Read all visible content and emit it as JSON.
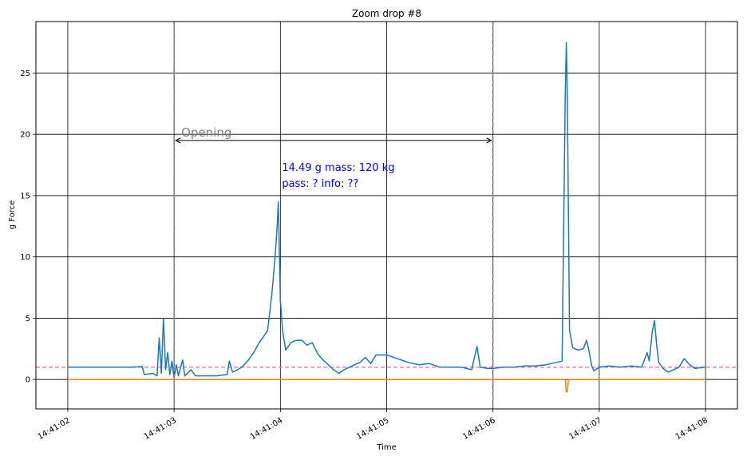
{
  "chart_data": {
    "type": "line",
    "title": "Zoom drop #8",
    "xlabel": "Time",
    "ylabel": "g Force",
    "xlim": [
      -0.3,
      6.3
    ],
    "ylim": [
      -2.4,
      29.2
    ],
    "x_ticks": [
      0,
      1,
      2,
      3,
      4,
      5,
      6
    ],
    "x_tick_labels": [
      "14:41:02",
      "14:41:03",
      "14:41:04",
      "14:41:05",
      "14:41:06",
      "14:41:07",
      "14:41:08"
    ],
    "y_ticks": [
      0,
      5,
      10,
      15,
      20,
      25
    ],
    "y_tick_labels": [
      "0",
      "5",
      "10",
      "15",
      "20",
      "25"
    ],
    "grid": true,
    "colors": {
      "series_1": "#1f77b4",
      "series_2": "#ff7f0e",
      "reference": "#e377c2",
      "markers": "#7f7f7f",
      "annotation": "#0000ff"
    },
    "series": [
      {
        "color": "#1f77b4",
        "points": [
          [
            0.0,
            1.0
          ],
          [
            0.3,
            1.0
          ],
          [
            0.6,
            1.0
          ],
          [
            0.7,
            1.05
          ],
          [
            0.72,
            0.4
          ],
          [
            0.8,
            0.5
          ],
          [
            0.84,
            0.3
          ],
          [
            0.86,
            3.4
          ],
          [
            0.88,
            0.5
          ],
          [
            0.9,
            5.0
          ],
          [
            0.92,
            0.8
          ],
          [
            0.94,
            2.2
          ],
          [
            0.96,
            0.4
          ],
          [
            0.98,
            1.5
          ],
          [
            1.0,
            0.1
          ],
          [
            1.02,
            1.2
          ],
          [
            1.04,
            0.3
          ],
          [
            1.08,
            1.6
          ],
          [
            1.1,
            0.3
          ],
          [
            1.16,
            0.8
          ],
          [
            1.2,
            0.3
          ],
          [
            1.4,
            0.3
          ],
          [
            1.5,
            0.4
          ],
          [
            1.52,
            1.5
          ],
          [
            1.55,
            0.6
          ],
          [
            1.6,
            0.8
          ],
          [
            1.65,
            1.1
          ],
          [
            1.7,
            1.6
          ],
          [
            1.75,
            2.2
          ],
          [
            1.8,
            3.0
          ],
          [
            1.85,
            3.6
          ],
          [
            1.88,
            4.0
          ],
          [
            1.92,
            7.0
          ],
          [
            1.95,
            10.0
          ],
          [
            1.97,
            12.5
          ],
          [
            1.98,
            14.49
          ],
          [
            2.0,
            6.5
          ],
          [
            2.02,
            4.0
          ],
          [
            2.05,
            2.4
          ],
          [
            2.1,
            3.0
          ],
          [
            2.15,
            3.2
          ],
          [
            2.2,
            3.2
          ],
          [
            2.25,
            2.8
          ],
          [
            2.3,
            3.0
          ],
          [
            2.35,
            2.1
          ],
          [
            2.4,
            1.6
          ],
          [
            2.45,
            1.2
          ],
          [
            2.5,
            0.8
          ],
          [
            2.55,
            0.5
          ],
          [
            2.6,
            0.8
          ],
          [
            2.7,
            1.2
          ],
          [
            2.75,
            1.4
          ],
          [
            2.8,
            1.8
          ],
          [
            2.85,
            1.3
          ],
          [
            2.9,
            2.0
          ],
          [
            3.0,
            2.0
          ],
          [
            3.1,
            1.7
          ],
          [
            3.2,
            1.4
          ],
          [
            3.3,
            1.2
          ],
          [
            3.4,
            1.3
          ],
          [
            3.5,
            1.0
          ],
          [
            3.6,
            1.0
          ],
          [
            3.7,
            1.0
          ],
          [
            3.8,
            0.8
          ],
          [
            3.85,
            2.7
          ],
          [
            3.88,
            1.0
          ],
          [
            3.95,
            0.9
          ],
          [
            4.0,
            0.9
          ],
          [
            4.1,
            1.0
          ],
          [
            4.2,
            1.0
          ],
          [
            4.3,
            1.1
          ],
          [
            4.4,
            1.1
          ],
          [
            4.5,
            1.2
          ],
          [
            4.6,
            1.4
          ],
          [
            4.65,
            1.5
          ],
          [
            4.68,
            23.0
          ],
          [
            4.69,
            27.5
          ],
          [
            4.7,
            23.0
          ],
          [
            4.72,
            4.0
          ],
          [
            4.75,
            2.6
          ],
          [
            4.8,
            2.4
          ],
          [
            4.85,
            2.5
          ],
          [
            4.88,
            3.2
          ],
          [
            4.9,
            2.5
          ],
          [
            4.93,
            1.1
          ],
          [
            4.95,
            0.7
          ],
          [
            5.0,
            1.0
          ],
          [
            5.1,
            1.1
          ],
          [
            5.2,
            1.0
          ],
          [
            5.3,
            1.1
          ],
          [
            5.4,
            1.0
          ],
          [
            5.45,
            2.2
          ],
          [
            5.47,
            1.5
          ],
          [
            5.5,
            4.0
          ],
          [
            5.52,
            4.8
          ],
          [
            5.54,
            2.8
          ],
          [
            5.56,
            1.4
          ],
          [
            5.6,
            0.9
          ],
          [
            5.65,
            0.6
          ],
          [
            5.7,
            0.8
          ],
          [
            5.75,
            1.0
          ],
          [
            5.8,
            1.7
          ],
          [
            5.85,
            1.2
          ],
          [
            5.9,
            0.9
          ],
          [
            6.0,
            1.0
          ]
        ]
      },
      {
        "color": "#ff7f0e",
        "points": [
          [
            0.0,
            0.0
          ],
          [
            4.68,
            0.0
          ],
          [
            4.69,
            -1.0
          ],
          [
            4.7,
            -1.0
          ],
          [
            4.71,
            0.0
          ],
          [
            6.0,
            0.0
          ]
        ]
      }
    ],
    "reference_line": {
      "y": 1.0,
      "color": "#e377c2",
      "style": "dashed"
    },
    "vertical_markers": [
      {
        "x": 1.0,
        "color": "#7f7f7f",
        "style": "dashed"
      },
      {
        "x": 4.0,
        "color": "#7f7f7f",
        "style": "dashed"
      }
    ],
    "span_arrow": {
      "x_start": 1.0,
      "x_end": 4.0,
      "y": 19.5,
      "label": "Opening"
    },
    "annotations": [
      {
        "x": 2.0,
        "y": 17.0,
        "text": "14.49 g  mass: 120 kg"
      },
      {
        "x": 2.0,
        "y": 15.7,
        "text": "pass: ?  info: ??"
      }
    ]
  }
}
